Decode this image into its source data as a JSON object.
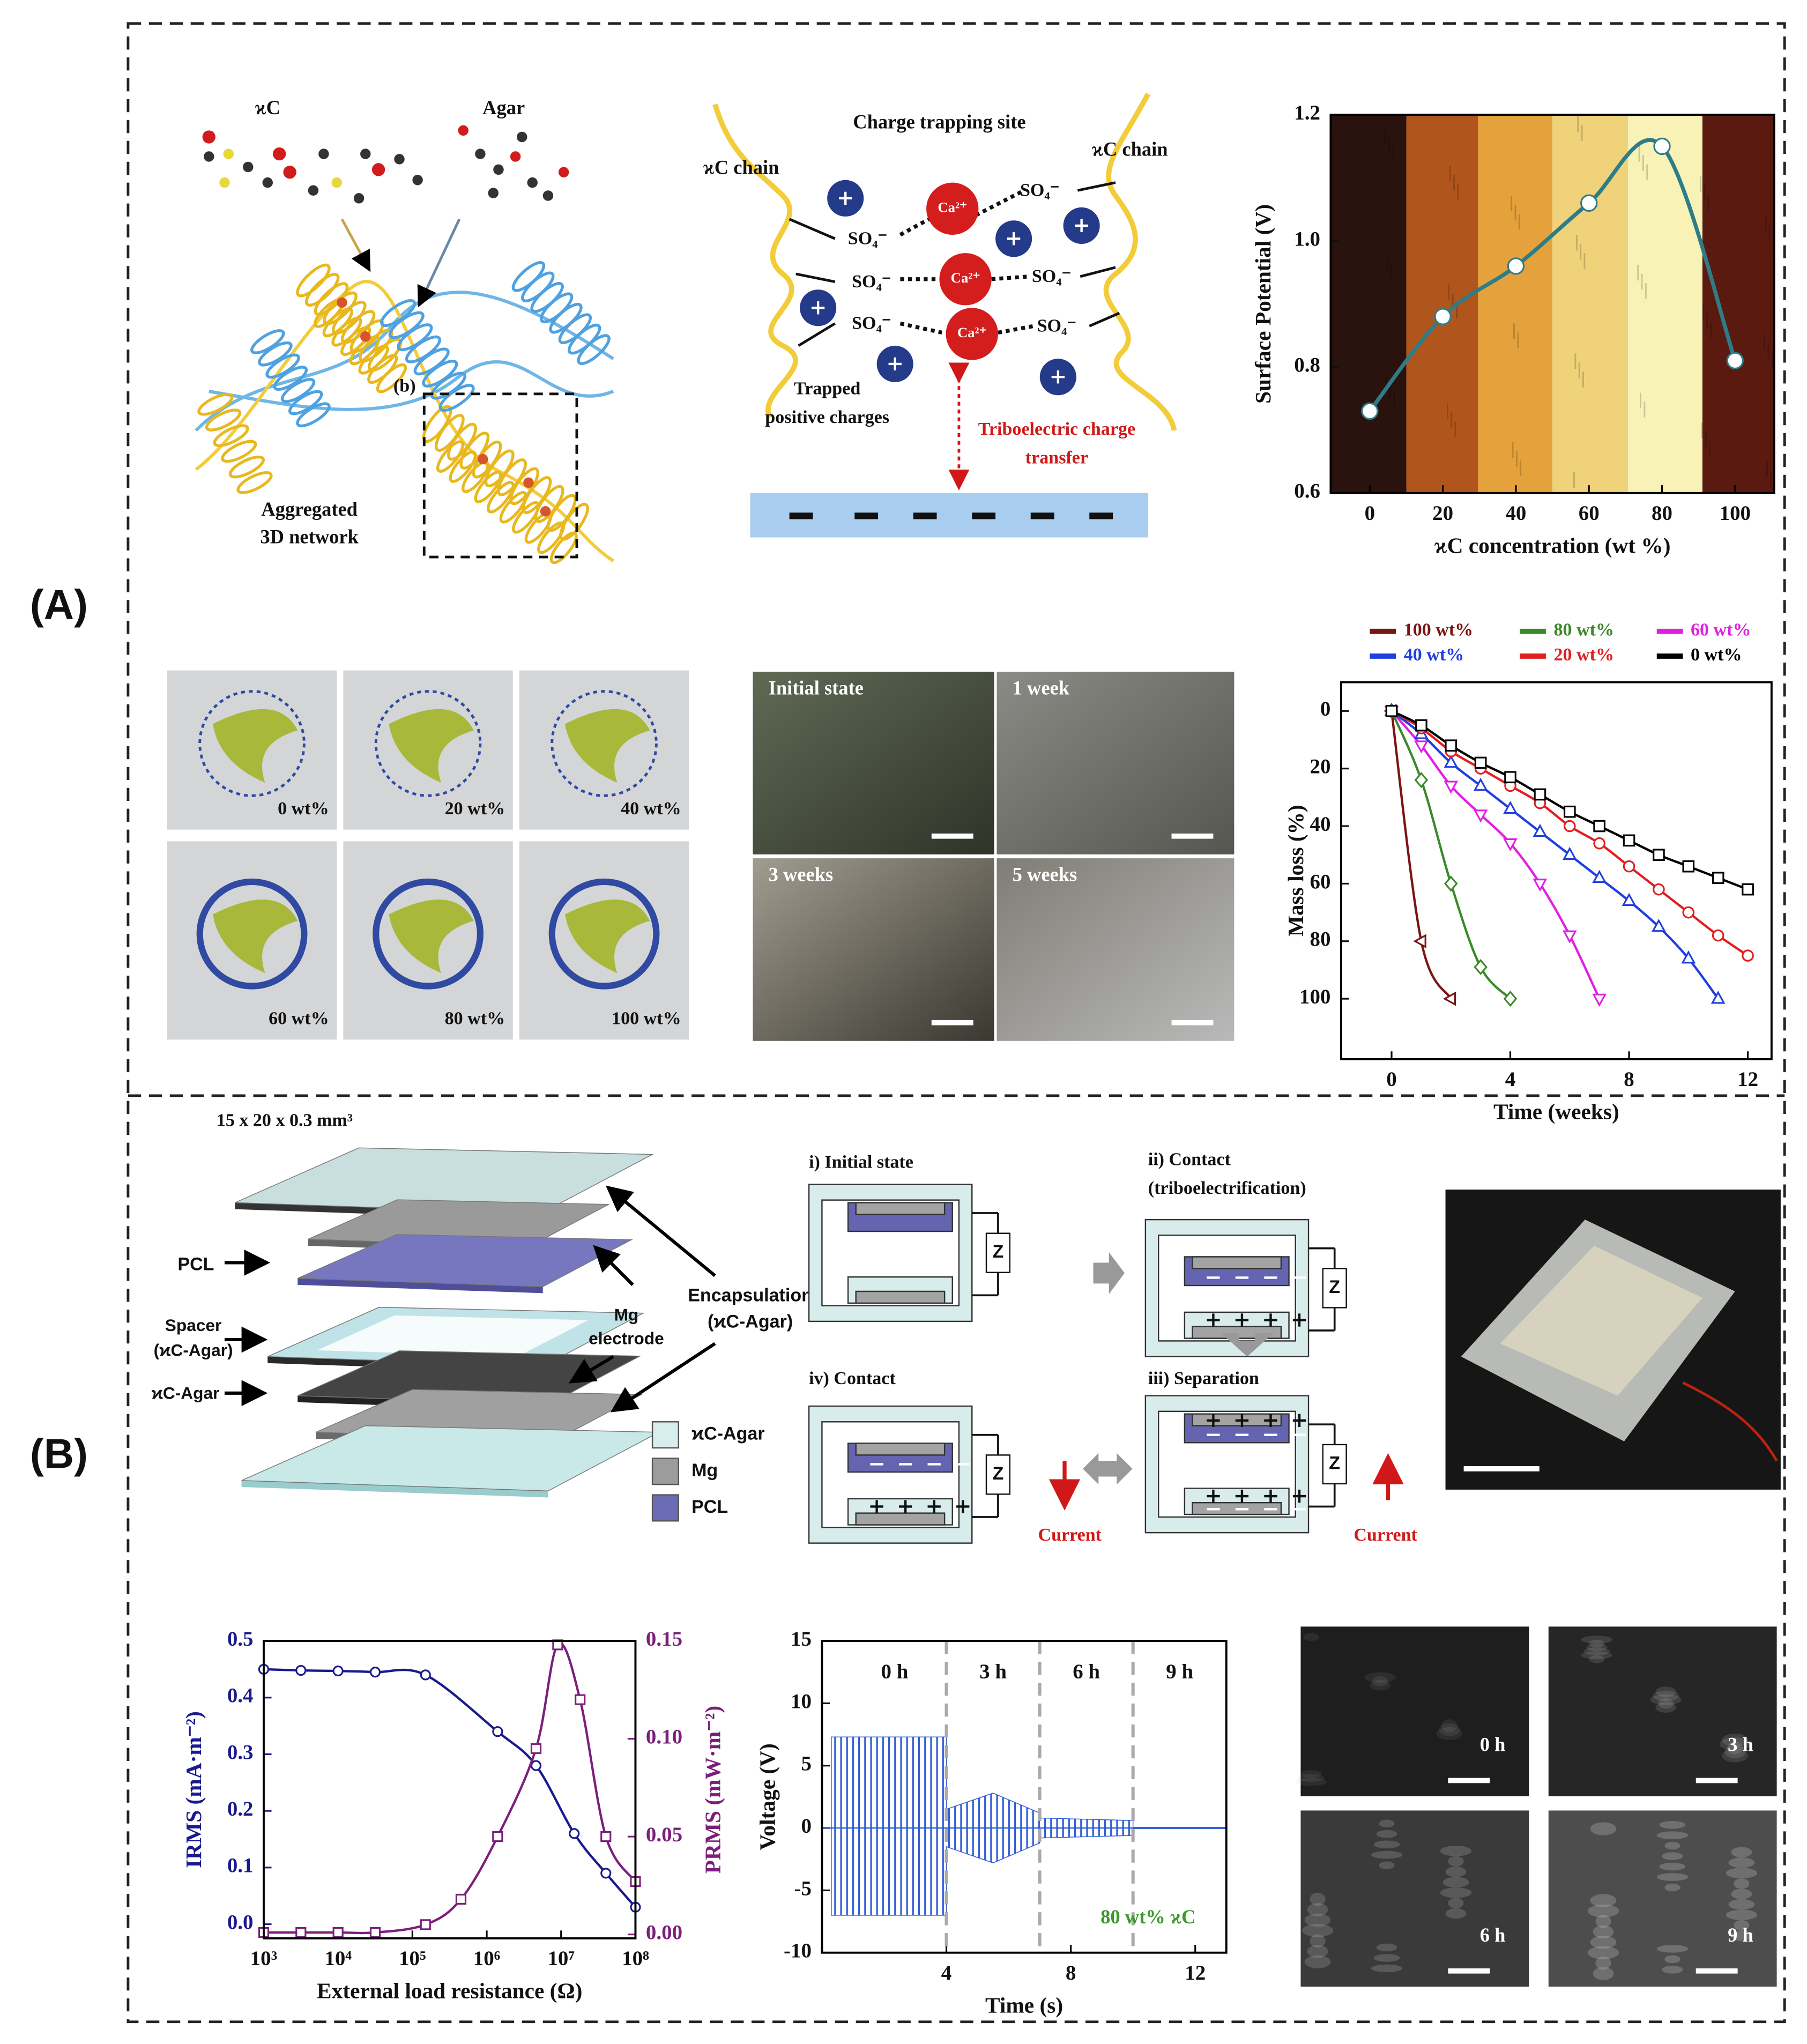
{
  "panel_labels": [
    "(A)",
    "(B)"
  ],
  "a_structure": {
    "kc": "ϰC",
    "agar": "Agar",
    "zoom": "(b)",
    "network": [
      "Aggregated",
      "3D network"
    ]
  },
  "a_charge": {
    "title": "Charge trapping site",
    "chains": [
      "ϰC chain",
      "ϰC chain"
    ],
    "sulfate": [
      "SO₄⁻",
      "SO₄⁻",
      "SO₄⁻",
      "SO₄⁻",
      "SO₄⁻",
      "SO₄⁻"
    ],
    "calcium": [
      "Ca²⁺",
      "Ca²⁺",
      "Ca²⁺"
    ],
    "trapped": [
      "Trapped",
      "positive charges"
    ],
    "transfer": [
      "Triboelectric charge",
      "transfer"
    ]
  },
  "a_films": [
    "0 wt%",
    "20 wt%",
    "40 wt%",
    "60 wt%",
    "80 wt%",
    "100 wt%"
  ],
  "a_micro": [
    "Initial state",
    "1 week",
    "3 weeks",
    "5 weeks"
  ],
  "b_device": {
    "size": "15 x 20 x 0.3 mm³",
    "pcl": "PCL",
    "spacer": [
      "Spacer",
      "(ϰC-Agar)"
    ],
    "kc_agar": "ϰC-Agar",
    "mg": [
      "Mg",
      "electrode"
    ],
    "encapsulation": [
      "Encapsulation",
      "(ϰC-Agar)"
    ],
    "legend": [
      "ϰC-Agar",
      "Mg",
      "PCL"
    ]
  },
  "b_cycle": {
    "initial": "i) Initial state",
    "contact": [
      "ii) Contact",
      "(triboelectrification)"
    ],
    "separation": "iii) Separation",
    "contact_back": "iv) Contact",
    "load": "Z",
    "current": "Current"
  },
  "b_sem": [
    "0 h",
    "3 h",
    "6 h",
    "9 h"
  ],
  "chart_data": [
    {
      "type": "line",
      "x_label": "ϰC concentration (wt %)",
      "y_label": "Surface Potential (V)",
      "x": [
        0,
        20,
        40,
        60,
        80,
        100
      ],
      "series": [
        {
          "values": [
            0.73,
            0.88,
            0.96,
            1.06,
            1.15,
            0.81
          ],
          "color": "#2e7d86",
          "marker": "circle"
        }
      ],
      "xlim": [
        -10.7,
        110.7
      ],
      "xticks": [
        0,
        20,
        40,
        60,
        80,
        100
      ],
      "ylim": [
        0.6,
        1.2
      ],
      "yticks": [
        0.6,
        0.8,
        {
          "value": 1,
          "label": "1.0"
        },
        1.2
      ]
    },
    {
      "type": "line",
      "x_label": "Time (weeks)",
      "y_label": "Mass loss (%)",
      "y_inverted": true,
      "xlim": [
        -1.7,
        12.8
      ],
      "xticks": [
        0,
        4,
        8,
        12
      ],
      "ylim": [
        -10,
        121
      ],
      "yticks": [
        0,
        20,
        40,
        60,
        80,
        100
      ],
      "legend": "top",
      "series": [
        {
          "name": "100 wt%",
          "color": "#7a1515",
          "marker": "triangle-left",
          "x": [
            0,
            1,
            2
          ],
          "values": [
            0,
            80,
            100
          ]
        },
        {
          "name": "80 wt%",
          "color": "#3a8a2a",
          "marker": "diamond",
          "x": [
            0,
            1,
            2,
            3,
            4
          ],
          "values": [
            0,
            24,
            60,
            89,
            100
          ]
        },
        {
          "name": "60 wt%",
          "color": "#e020e0",
          "marker": "triangle-down",
          "x": [
            0,
            1,
            2,
            3,
            4,
            5,
            6,
            7
          ],
          "values": [
            0,
            12,
            26,
            36,
            46,
            60,
            78,
            100
          ]
        },
        {
          "name": "40 wt%",
          "color": "#1f3fe0",
          "marker": "triangle-up",
          "x": [
            0,
            1,
            2,
            3,
            4,
            5,
            6,
            7,
            8,
            9,
            10,
            11
          ],
          "values": [
            0,
            8,
            18,
            26,
            34,
            42,
            50,
            58,
            66,
            75,
            86,
            100
          ]
        },
        {
          "name": "20 wt%",
          "color": "#e02020",
          "marker": "circle",
          "x": [
            0,
            1,
            2,
            3,
            4,
            5,
            6,
            7,
            8,
            9,
            10,
            11,
            12
          ],
          "values": [
            0,
            6,
            14,
            20,
            26,
            32,
            40,
            46,
            54,
            62,
            70,
            78,
            85
          ]
        },
        {
          "name": "0 wt%",
          "color": "#000000",
          "marker": "square",
          "x": [
            0,
            1,
            2,
            3,
            4,
            5,
            6,
            7,
            8,
            9,
            10,
            11,
            12
          ],
          "values": [
            0,
            5,
            12,
            18,
            23,
            29,
            35,
            40,
            45,
            50,
            54,
            58,
            62
          ]
        }
      ]
    },
    {
      "type": "line",
      "x_label": "External load resistance (Ω)",
      "y_label": "IRMS (mA·m⁻²)",
      "y2_label": "PRMS (mW·m⁻²)",
      "xlog": true,
      "xlim": [
        1000,
        100000000
      ],
      "xticks": [
        {
          "value": 1000,
          "label": "10³"
        },
        {
          "value": 10000,
          "label": "10⁴"
        },
        {
          "value": 100000,
          "label": "10⁵"
        },
        {
          "value": 1000000,
          "label": "10⁶"
        },
        {
          "value": 10000000,
          "label": "10⁷"
        },
        {
          "value": 100000000,
          "label": "10⁸"
        }
      ],
      "ylim": [
        -0.025,
        0.5
      ],
      "yticks": [
        {
          "value": 0,
          "label": "0.0"
        },
        0.1,
        0.2,
        0.3,
        0.4,
        0.5
      ],
      "y2lim": [
        -0.002,
        0.15
      ],
      "y2ticks": [
        {
          "value": 0,
          "label": "0.00"
        },
        0.05,
        {
          "value": 0.1,
          "label": "0.10"
        },
        0.15
      ],
      "series": [
        {
          "color": "#1a1a8e",
          "marker": "circle",
          "x": [
            1000,
            3162,
            10000,
            31623,
            150000,
            1400000,
            4600000,
            15000000,
            40000000,
            100000000
          ],
          "values": [
            0.45,
            0.448,
            0.447,
            0.445,
            0.44,
            0.34,
            0.28,
            0.16,
            0.09,
            0.03
          ]
        },
        {
          "axis": "y2",
          "color": "#7b1f7b",
          "marker": "square",
          "x": [
            1000,
            3162,
            10000,
            31623,
            150000,
            450000,
            1400000,
            4600000,
            9000000,
            18000000,
            40000000,
            100000000
          ],
          "values": [
            0.001,
            0.001,
            0.001,
            0.001,
            0.005,
            0.018,
            0.05,
            0.095,
            0.148,
            0.12,
            0.05,
            0.027
          ]
        }
      ]
    },
    {
      "type": "band",
      "x_label": "Time (s)",
      "y_label": "Voltage (V)",
      "color": "#2a5bd7",
      "xlim": [
        0,
        13
      ],
      "xticks": [
        4,
        8,
        12
      ],
      "ylim": [
        -10,
        15
      ],
      "yticks": [
        -10,
        -5,
        0,
        5,
        10,
        15
      ],
      "x": [
        0.3,
        4,
        4,
        5.5,
        7,
        7,
        10,
        10,
        13
      ],
      "upper": [
        7.3,
        7.3,
        1.5,
        2.8,
        1.2,
        0.8,
        0.6,
        0.05,
        0.05
      ],
      "lower": [
        -7,
        -7,
        -1.5,
        -2.8,
        -1.2,
        -0.8,
        -0.6,
        -0.05,
        -0.05
      ],
      "dividers": [
        4,
        7,
        10
      ],
      "segments": [
        "0 h",
        "3 h",
        "6 h",
        "9 h"
      ],
      "annotation": "80 wt% ϰC"
    }
  ]
}
